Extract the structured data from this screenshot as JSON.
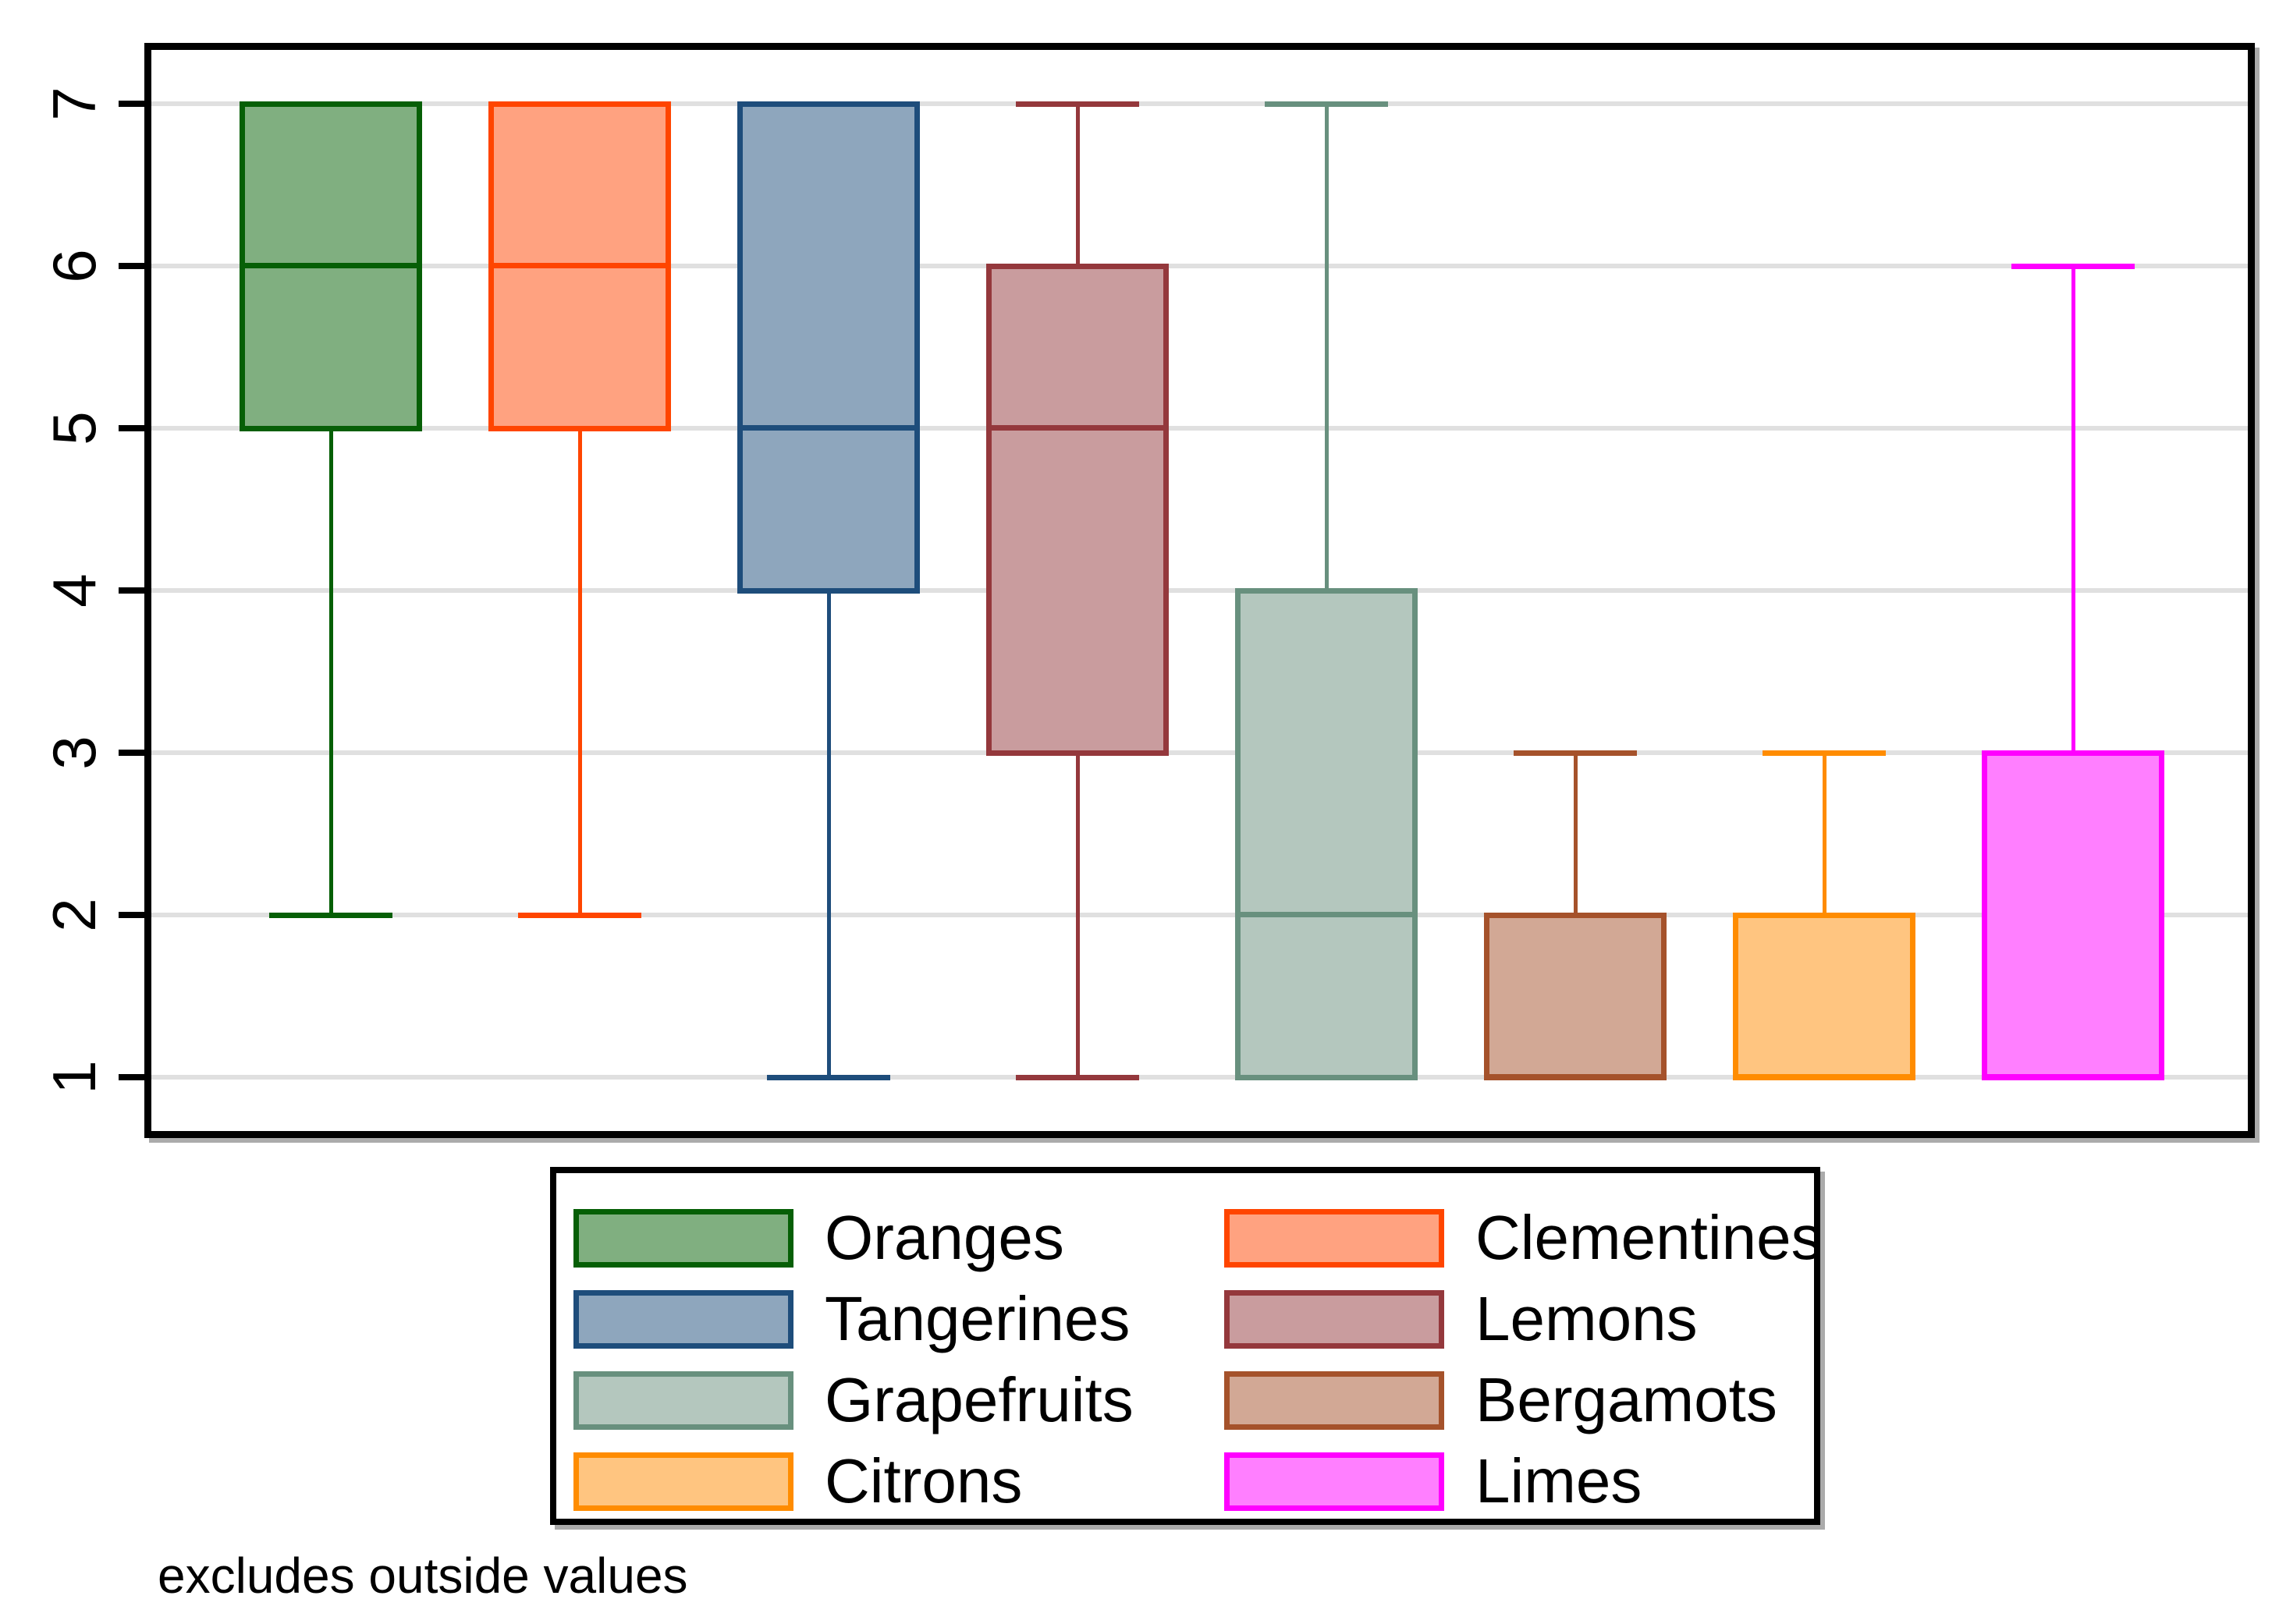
{
  "chart_data": {
    "type": "box",
    "orientation": "vertical",
    "title": "",
    "note": "excludes outside values",
    "y_axis": {
      "ticks": [
        1,
        2,
        3,
        4,
        5,
        6,
        7
      ],
      "range": [
        1,
        7
      ],
      "gridlines": true,
      "tick_label_rotation_deg": -90
    },
    "series": [
      {
        "name": "Oranges",
        "q1": 5,
        "median": 6,
        "q3": 7,
        "whisker_low": 2,
        "whisker_high": 7,
        "stroke": "#065f06",
        "fill": "#80af80"
      },
      {
        "name": "Clementines",
        "q1": 5,
        "median": 6,
        "q3": 7,
        "whisker_low": 2,
        "whisker_high": 7,
        "stroke": "#ff4500",
        "fill": "#ffa280"
      },
      {
        "name": "Tangerines",
        "q1": 4,
        "median": 5,
        "q3": 7,
        "whisker_low": 1,
        "whisker_high": 7,
        "stroke": "#1e4d7b",
        "fill": "#8ea6bd"
      },
      {
        "name": "Lemons",
        "q1": 3,
        "median": 5,
        "q3": 6,
        "whisker_low": 1,
        "whisker_high": 7,
        "stroke": "#94383c",
        "fill": "#c99c9e"
      },
      {
        "name": "Grapefruits",
        "q1": 1,
        "median": 2,
        "q3": 4,
        "whisker_low": 1,
        "whisker_high": 7,
        "stroke": "#68907e",
        "fill": "#b4c7be"
      },
      {
        "name": "Bergamots",
        "q1": 1,
        "median": 1,
        "q3": 2,
        "whisker_low": 1,
        "whisker_high": 3,
        "stroke": "#a5522b",
        "fill": "#d2a895"
      },
      {
        "name": "Citrons",
        "q1": 1,
        "median": 1,
        "q3": 2,
        "whisker_low": 1,
        "whisker_high": 3,
        "stroke": "#ff8c00",
        "fill": "#ffc580"
      },
      {
        "name": "Limes",
        "q1": 1,
        "median": 1,
        "q3": 3,
        "whisker_low": 1,
        "whisker_high": 6,
        "stroke": "#ff00ff",
        "fill": "#ff7fff"
      }
    ],
    "legend": {
      "position": "bottom-center",
      "columns": 2,
      "entries": [
        "Oranges",
        "Clementines",
        "Tangerines",
        "Lemons",
        "Grapefruits",
        "Bergamots",
        "Citrons",
        "Limes"
      ]
    },
    "colors": {
      "background": "#ffffff",
      "grid": "#e0e0e0",
      "axis": "#000000"
    }
  }
}
